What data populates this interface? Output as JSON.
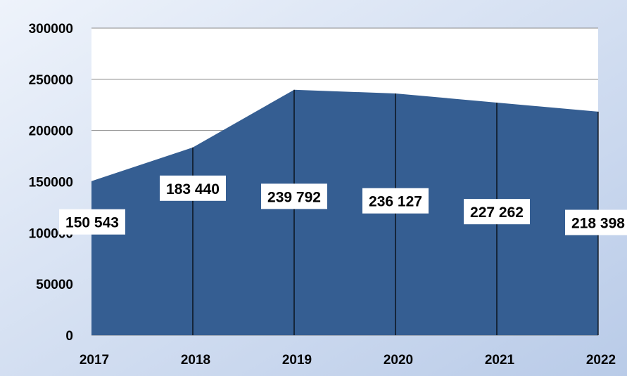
{
  "chart_data": {
    "type": "area",
    "title": "",
    "xlabel": "",
    "ylabel": "",
    "x": [
      "2017",
      "2018",
      "2019",
      "2020",
      "2021",
      "2022"
    ],
    "series": [
      {
        "values": [
          150543,
          183440,
          239792,
          236127,
          227262,
          218398
        ],
        "labels": [
          "150 543",
          "183 440",
          "239 792",
          "236 127",
          "227 262",
          "218 398"
        ]
      }
    ],
    "ylim": [
      0,
      300000
    ],
    "yticks": [
      0,
      50000,
      100000,
      150000,
      200000,
      250000,
      300000
    ],
    "ytick_labels": [
      "0",
      "50000",
      "100000",
      "150000",
      "200000",
      "250000",
      "300000"
    ],
    "grid": true,
    "drop_lines": true,
    "legend": "none",
    "colors": {
      "area": "#355e92",
      "background_gradient": [
        "#eef3fb",
        "#b9cbe8"
      ],
      "plot_background": "#ffffff",
      "label_box": "#ffffff"
    }
  }
}
